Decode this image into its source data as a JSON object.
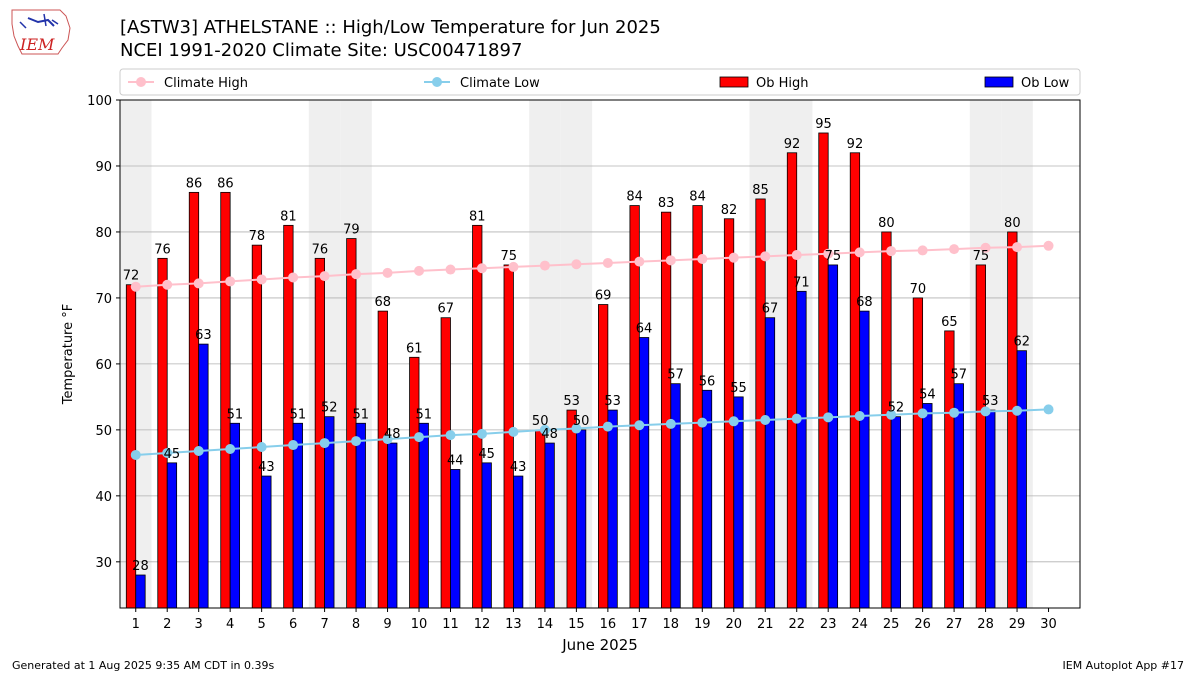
{
  "header": {
    "title": "[ASTW3] ATHELSTANE :: High/Low Temperature for Jun 2025",
    "subtitle": "NCEI 1991-2020 Climate Site: USC00471897",
    "logo_text": "IEM"
  },
  "footer": {
    "generated": "Generated at 1 Aug 2025 9:35 AM CDT in 0.39s",
    "app": "IEM Autoplot App #17"
  },
  "colors": {
    "ob_high": "#ff0000",
    "ob_low": "#0000ff",
    "climate_high": "#ffc0cb",
    "climate_low": "#87ceeb",
    "weekend_shade": "#efefef",
    "grid": "#b0b0b0"
  },
  "chart_data": {
    "type": "bar",
    "xlabel": "June 2025",
    "ylabel": "Temperature °F",
    "ylim": [
      23,
      100
    ],
    "yticks": [
      30,
      40,
      50,
      60,
      70,
      80,
      90,
      100
    ],
    "categories": [
      "1",
      "2",
      "3",
      "4",
      "5",
      "6",
      "7",
      "8",
      "9",
      "10",
      "11",
      "12",
      "13",
      "14",
      "15",
      "16",
      "17",
      "18",
      "19",
      "20",
      "21",
      "22",
      "23",
      "24",
      "25",
      "26",
      "27",
      "28",
      "29",
      "30"
    ],
    "grid": true,
    "legend_placement": "top",
    "legend": [
      "Climate High",
      "Climate Low",
      "Ob High",
      "Ob Low"
    ],
    "shaded_days": [
      1,
      7,
      8,
      14,
      15,
      21,
      22,
      28,
      29
    ],
    "series": [
      {
        "name": "Ob High",
        "kind": "bar",
        "values": [
          72,
          76,
          86,
          86,
          78,
          81,
          76,
          79,
          68,
          61,
          67,
          81,
          75,
          50,
          53,
          69,
          84,
          83,
          84,
          82,
          85,
          92,
          95,
          92,
          80,
          70,
          65,
          75,
          80,
          null
        ]
      },
      {
        "name": "Ob Low",
        "kind": "bar",
        "values": [
          28,
          45,
          63,
          51,
          43,
          51,
          52,
          51,
          48,
          51,
          44,
          45,
          43,
          48,
          50,
          53,
          64,
          57,
          56,
          55,
          67,
          71,
          75,
          68,
          52,
          54,
          57,
          53,
          62,
          null
        ]
      },
      {
        "name": "Climate High",
        "kind": "line",
        "values": [
          71.7,
          72.0,
          72.2,
          72.5,
          72.8,
          73.1,
          73.3,
          73.6,
          73.8,
          74.1,
          74.3,
          74.5,
          74.7,
          74.9,
          75.1,
          75.3,
          75.5,
          75.7,
          75.9,
          76.1,
          76.3,
          76.5,
          76.7,
          76.9,
          77.1,
          77.2,
          77.4,
          77.6,
          77.7,
          77.9
        ]
      },
      {
        "name": "Climate Low",
        "kind": "line",
        "values": [
          46.2,
          46.5,
          46.8,
          47.1,
          47.4,
          47.7,
          48.0,
          48.3,
          48.6,
          48.9,
          49.2,
          49.4,
          49.7,
          50.0,
          50.2,
          50.5,
          50.7,
          50.9,
          51.1,
          51.3,
          51.5,
          51.7,
          51.9,
          52.1,
          52.3,
          52.5,
          52.6,
          52.8,
          52.9,
          53.1
        ]
      }
    ]
  }
}
